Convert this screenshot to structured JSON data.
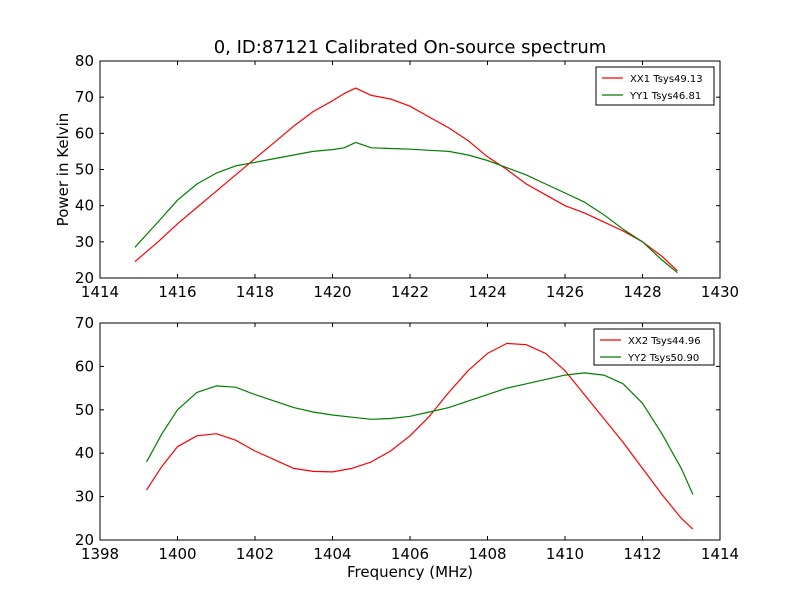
{
  "figure": {
    "title": "0, ID:87121 Calibrated On-source spectrum"
  },
  "colors": {
    "xx": "#ff0000",
    "yy": "#007f00",
    "axes": "#000000",
    "background": "#ffffff"
  },
  "chart_data": [
    {
      "type": "line",
      "title": "0, ID:87121 Calibrated On-source spectrum",
      "xlabel": "",
      "ylabel": "Power in Kelvin",
      "xlim": [
        1414,
        1430
      ],
      "ylim": [
        20,
        80
      ],
      "xticks": [
        1414,
        1416,
        1418,
        1420,
        1422,
        1424,
        1426,
        1428,
        1430
      ],
      "yticks": [
        20,
        30,
        40,
        50,
        60,
        70,
        80
      ],
      "grid": false,
      "legend_position": "top-right",
      "series": [
        {
          "name": "XX1 Tsys49.13",
          "color": "#ff0000",
          "x": [
            1414.9,
            1415.5,
            1416.0,
            1416.5,
            1417.0,
            1417.5,
            1418.0,
            1418.5,
            1419.0,
            1419.5,
            1420.0,
            1420.3,
            1420.6,
            1421.0,
            1421.5,
            1422.0,
            1422.5,
            1423.0,
            1423.5,
            1424.0,
            1424.5,
            1425.0,
            1425.5,
            1426.0,
            1426.5,
            1427.0,
            1427.5,
            1428.0,
            1428.5,
            1428.9
          ],
          "y": [
            24.5,
            30.0,
            35.0,
            39.5,
            44.0,
            48.5,
            53.0,
            57.5,
            62.0,
            66.0,
            69.0,
            71.0,
            72.5,
            70.5,
            69.5,
            67.5,
            64.5,
            61.5,
            58.0,
            53.5,
            50.0,
            46.0,
            43.0,
            40.0,
            38.0,
            35.5,
            33.0,
            30.0,
            26.0,
            22.0
          ]
        },
        {
          "name": "YY1 Tsys46.81",
          "color": "#007f00",
          "x": [
            1414.9,
            1415.5,
            1416.0,
            1416.5,
            1417.0,
            1417.5,
            1418.0,
            1418.5,
            1419.0,
            1419.5,
            1420.0,
            1420.3,
            1420.6,
            1421.0,
            1421.5,
            1422.0,
            1422.5,
            1423.0,
            1423.5,
            1424.0,
            1424.5,
            1425.0,
            1425.5,
            1426.0,
            1426.5,
            1427.0,
            1427.5,
            1428.0,
            1428.5,
            1428.9
          ],
          "y": [
            28.5,
            35.5,
            41.5,
            46.0,
            49.0,
            51.0,
            52.0,
            53.0,
            54.0,
            55.0,
            55.5,
            56.0,
            57.5,
            56.0,
            55.8,
            55.6,
            55.3,
            55.0,
            54.0,
            52.5,
            50.5,
            48.5,
            46.0,
            43.5,
            41.0,
            37.5,
            33.5,
            30.0,
            25.0,
            21.5
          ]
        }
      ]
    },
    {
      "type": "line",
      "title": "",
      "xlabel": "Frequency (MHz)",
      "ylabel": "",
      "xlim": [
        1398,
        1414
      ],
      "ylim": [
        20,
        70
      ],
      "xticks": [
        1398,
        1400,
        1402,
        1404,
        1406,
        1408,
        1410,
        1412,
        1414
      ],
      "yticks": [
        20,
        30,
        40,
        50,
        60,
        70
      ],
      "grid": false,
      "legend_position": "top-right",
      "series": [
        {
          "name": "XX2 Tsys44.96",
          "color": "#ff0000",
          "x": [
            1399.2,
            1399.6,
            1400.0,
            1400.5,
            1401.0,
            1401.5,
            1402.0,
            1402.5,
            1403.0,
            1403.5,
            1404.0,
            1404.5,
            1405.0,
            1405.5,
            1406.0,
            1406.5,
            1407.0,
            1407.5,
            1408.0,
            1408.5,
            1409.0,
            1409.5,
            1410.0,
            1410.5,
            1411.0,
            1411.5,
            1412.0,
            1412.5,
            1413.0,
            1413.3
          ],
          "y": [
            31.5,
            37.0,
            41.5,
            44.0,
            44.5,
            43.0,
            40.5,
            38.5,
            36.5,
            35.8,
            35.7,
            36.5,
            38.0,
            40.5,
            44.0,
            48.5,
            54.0,
            59.0,
            63.0,
            65.3,
            65.0,
            63.0,
            59.0,
            53.5,
            48.0,
            42.5,
            36.5,
            30.5,
            25.0,
            22.5
          ]
        },
        {
          "name": "YY2 Tsys50.90",
          "color": "#007f00",
          "x": [
            1399.2,
            1399.6,
            1400.0,
            1400.5,
            1401.0,
            1401.5,
            1402.0,
            1402.5,
            1403.0,
            1403.5,
            1404.0,
            1404.5,
            1405.0,
            1405.5,
            1406.0,
            1406.5,
            1407.0,
            1407.5,
            1408.0,
            1408.5,
            1409.0,
            1409.5,
            1410.0,
            1410.5,
            1411.0,
            1411.5,
            1412.0,
            1412.5,
            1413.0,
            1413.3
          ],
          "y": [
            38.0,
            44.5,
            50.0,
            54.0,
            55.5,
            55.2,
            53.5,
            52.0,
            50.5,
            49.5,
            48.8,
            48.3,
            47.8,
            48.0,
            48.5,
            49.5,
            50.5,
            52.0,
            53.5,
            55.0,
            56.0,
            57.0,
            58.0,
            58.5,
            58.0,
            56.0,
            51.5,
            44.5,
            36.5,
            30.5
          ]
        }
      ]
    }
  ]
}
